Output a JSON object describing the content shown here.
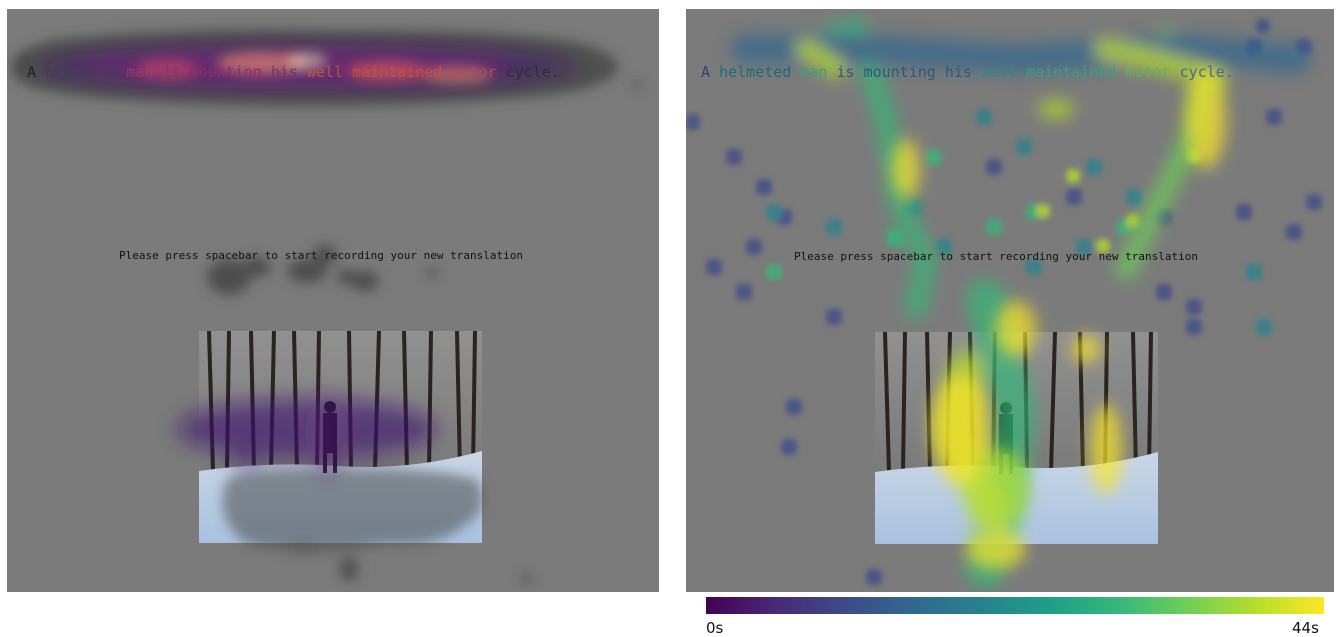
{
  "sentence_words": [
    "A",
    "helmeted",
    "man",
    "is",
    "mounting",
    "his",
    "well",
    "maintained",
    "motor",
    "cycle."
  ],
  "left_word_colors": [
    "#222222",
    "#4a3a5a",
    "#9b3a6e",
    "#7a3a6a",
    "#8a2f6a",
    "#6a3a6a",
    "#b05a3a",
    "#c0503a",
    "#b04a5a",
    "#303030"
  ],
  "right_word_colors": [
    "#3a3a7a",
    "#1f6a7a",
    "#35a07a",
    "#2b5a7a",
    "#2b5a7a",
    "#2b5a7a",
    "#2f8a7a",
    "#3aa07a",
    "#5fb060",
    "#4a6a8a"
  ],
  "instruction": "Please press spacebar to start recording your new translation",
  "colorbar": {
    "min_label": "0s",
    "max_label": "44s",
    "colors": [
      "#440154",
      "#482878",
      "#3e4989",
      "#31688e",
      "#26828e",
      "#1f9e89",
      "#35b779",
      "#6ece58",
      "#b5de2b",
      "#fde725"
    ]
  },
  "background_color": "#7b7b7b"
}
